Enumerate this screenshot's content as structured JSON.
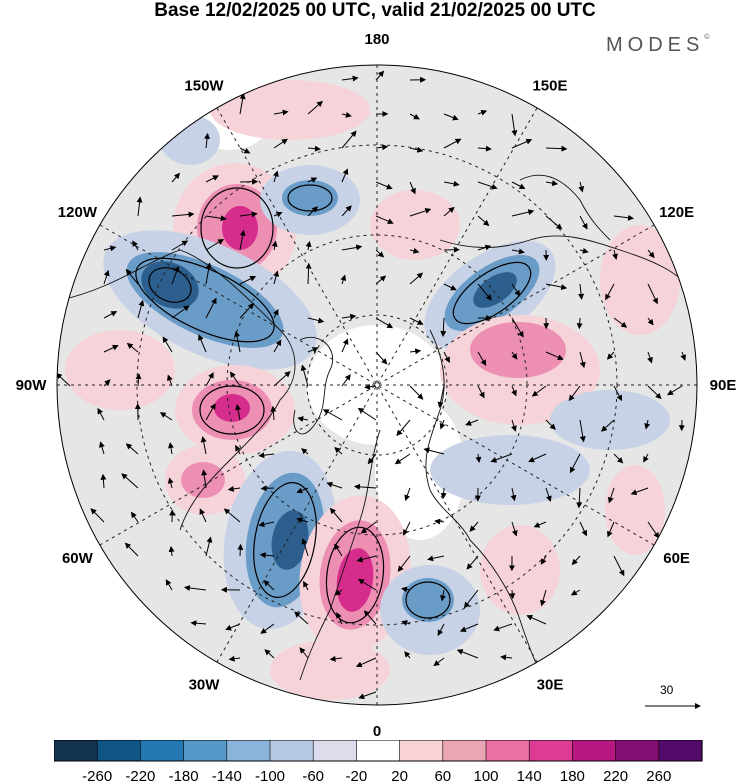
{
  "title": "Base 12/02/2025 00 UTC, valid 21/02/2025 00 UTC",
  "brand": "MODES",
  "brand_mark": "©",
  "map": {
    "projection": "north-polar-stereographic",
    "center_lon_top": "180",
    "longitude_labels": [
      {
        "text": "180",
        "lon": 180
      },
      {
        "text": "150E",
        "lon": 150
      },
      {
        "text": "120E",
        "lon": 120
      },
      {
        "text": "90E",
        "lon": 90
      },
      {
        "text": "60E",
        "lon": 60
      },
      {
        "text": "30E",
        "lon": 30
      },
      {
        "text": "0",
        "lon": 0
      },
      {
        "text": "30W",
        "lon": -30
      },
      {
        "text": "60W",
        "lon": -60
      },
      {
        "text": "90W",
        "lon": -90
      },
      {
        "text": "120W",
        "lon": -120
      },
      {
        "text": "150W",
        "lon": -150
      }
    ],
    "background_color": "#e6e6e6",
    "graticule": "dashed",
    "anomaly_colors": {
      "strong_negative": "#2c5f8e",
      "negative": "#6a9cc8",
      "weak_negative": "#c8d2e6",
      "neutral": "#ffffff",
      "weak_positive": "#f6d3d8",
      "positive": "#ec8fb3",
      "strong_positive": "#d62c8c"
    }
  },
  "reference_vector": {
    "label": "30"
  },
  "colorbar": {
    "tick_labels": [
      "-260",
      "-220",
      "-180",
      "-140",
      "-100",
      "-60",
      "-20",
      "20",
      "60",
      "100",
      "140",
      "180",
      "220",
      "260"
    ],
    "colors": [
      "#12324f",
      "#0f5585",
      "#2579b3",
      "#5698c8",
      "#8bb4da",
      "#b6c8e4",
      "#dcdced",
      "#ffffff",
      "#f8d2d6",
      "#eca5b4",
      "#ec6fa3",
      "#dc3c94",
      "#b81881",
      "#840f72",
      "#53096a"
    ]
  }
}
